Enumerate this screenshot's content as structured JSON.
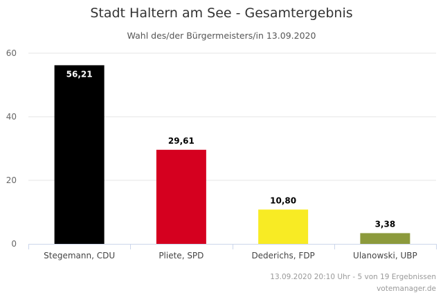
{
  "chart_data": {
    "type": "bar",
    "title": "Stadt Haltern am See - Gesamtergebnis",
    "subtitle": "Wahl des/der Bürgermeisters/in 13.09.2020",
    "categories": [
      "Stegemann, CDU",
      "Pliete, SPD",
      "Dederichs, FDP",
      "Ulanowski, UBP"
    ],
    "values": [
      56.21,
      29.61,
      10.8,
      3.38
    ],
    "data_labels": [
      "56,21",
      "29,61",
      "10,80",
      "3,38"
    ],
    "colors": [
      "#000000",
      "#d5001f",
      "#f8eb24",
      "#8c9a3c"
    ],
    "data_label_colors": [
      "#ffffff",
      "#000000",
      "#000000",
      "#000000"
    ],
    "ylim": [
      0,
      60
    ],
    "yticks": [
      "0",
      "20",
      "40",
      "60"
    ],
    "grid": true,
    "legend": false,
    "xlabel": "",
    "ylabel": ""
  },
  "credits": {
    "status": "13.09.2020 20:10 Uhr - 5 von 19 Ergebnissen",
    "source": "votemanager.de"
  }
}
